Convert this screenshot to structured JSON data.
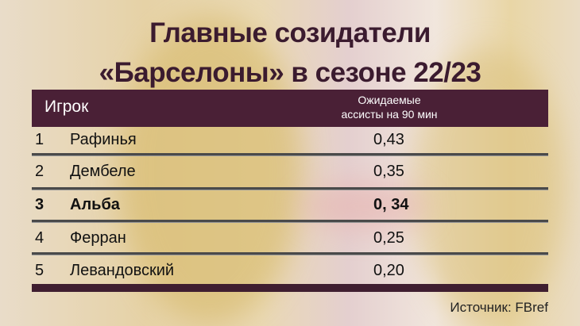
{
  "title": {
    "line1": "Главные созидатели",
    "line2": "«Барселоны» в сезоне 22/23"
  },
  "colors": {
    "header": "#4a2036",
    "title": "#3b1b2f"
  },
  "chart_data": {
    "type": "table",
    "columns": [
      "Игрок",
      "Ожидаемые ассисты на 90 мин"
    ],
    "column_header_player": "Игрок",
    "column_header_value_line1": "Ожидаемые",
    "column_header_value_line2": "ассисты на 90 мин",
    "rows": [
      {
        "rank": "1",
        "name": "Рафинья",
        "value": "0,43",
        "highlight": false
      },
      {
        "rank": "2",
        "name": "Дембеле",
        "value": "0,35",
        "highlight": false
      },
      {
        "rank": "3",
        "name": "Альба",
        "value": "0, 34",
        "highlight": true
      },
      {
        "rank": "4",
        "name": "Ферран",
        "value": "0,25",
        "highlight": false
      },
      {
        "rank": "5",
        "name": "Левандовский",
        "value": "0,20",
        "highlight": false
      }
    ]
  },
  "source": "Источник: FBref"
}
